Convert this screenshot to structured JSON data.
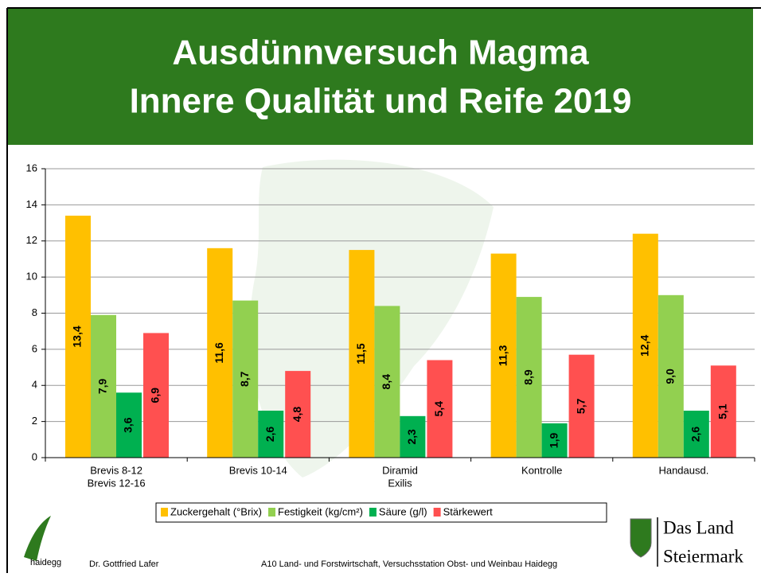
{
  "chart_data": {
    "type": "bar",
    "title": [
      "Ausdünnversuch Magma",
      "Innere Qualität und Reife 2019"
    ],
    "categories": [
      [
        "Brevis 8-12",
        "Brevis 12-16"
      ],
      [
        "Brevis 10-14"
      ],
      [
        "Diramid",
        "Exilis"
      ],
      [
        "Kontrolle"
      ],
      [
        "Handausd."
      ]
    ],
    "series": [
      {
        "name": "Zuckergehalt (°Brix)",
        "color": "#ffc000",
        "values": [
          13.4,
          11.6,
          11.5,
          11.3,
          12.4
        ],
        "value_labels": [
          "13,4",
          "11,6",
          "11,5",
          "11,3",
          "12,4"
        ]
      },
      {
        "name": "Festigkeit (kg/cm²)",
        "color": "#92d050",
        "values": [
          7.9,
          8.7,
          8.4,
          8.9,
          9.0
        ],
        "value_labels": [
          "7,9",
          "8,7",
          "8,4",
          "8,9",
          "9,0"
        ]
      },
      {
        "name": "Säure (g/l)",
        "color": "#00b050",
        "values": [
          3.6,
          2.6,
          2.3,
          1.9,
          2.6
        ],
        "value_labels": [
          "3,6",
          "2,6",
          "2,3",
          "1,9",
          "2,6"
        ]
      },
      {
        "name": "Stärkewert",
        "color": "#ff5050",
        "values": [
          6.9,
          4.8,
          5.4,
          5.7,
          5.1
        ],
        "value_labels": [
          "6,9",
          "4,8",
          "5,4",
          "5,7",
          "5,1"
        ]
      }
    ],
    "ylim": [
      0,
      16
    ],
    "yticks": [
      0,
      2,
      4,
      6,
      8,
      10,
      12,
      14,
      16
    ],
    "grid": true
  },
  "footer": {
    "logo": "haidegg",
    "author": "Dr. Gottfried Lafer",
    "institution": "A10 Land- und Forstwirtschaft, Versuchsstation Obst- und Weinbau Haidegg",
    "brand": [
      "Das Land",
      "Steiermark"
    ]
  }
}
